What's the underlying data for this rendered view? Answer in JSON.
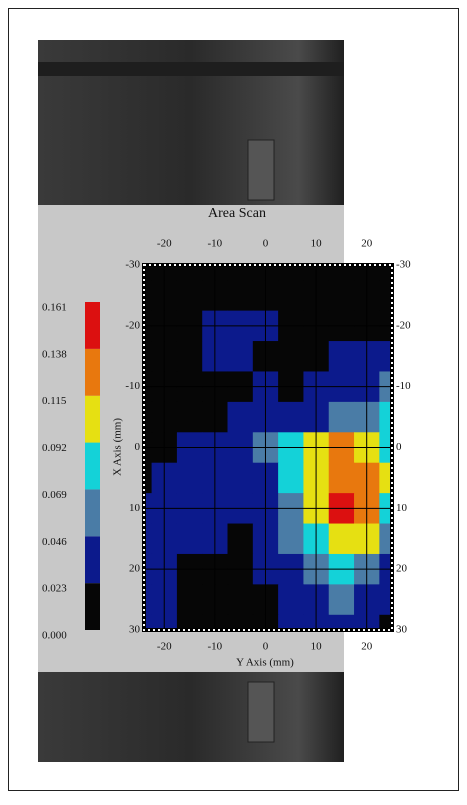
{
  "chart_data": {
    "type": "contour",
    "title": "Area Scan",
    "x_label": "Y Axis (mm)",
    "y_label": "X Axis (mm)",
    "x": [
      -25,
      -20,
      -15,
      -10,
      -5,
      0,
      5,
      10,
      15,
      20,
      25
    ],
    "y": [
      -30,
      -25,
      -20,
      -15,
      -10,
      -5,
      0,
      5,
      10,
      15,
      20,
      25,
      30
    ],
    "values": [
      [
        0.01,
        0.01,
        0.01,
        0.01,
        0.01,
        0.01,
        0.01,
        0.01,
        0.01,
        0.01,
        0.01
      ],
      [
        0.01,
        0.01,
        0.01,
        0.01,
        0.01,
        0.01,
        0.01,
        0.01,
        0.01,
        0.01,
        0.01
      ],
      [
        0.01,
        0.01,
        0.01,
        0.035,
        0.035,
        0.035,
        0.01,
        0.01,
        0.01,
        0.01,
        0.01
      ],
      [
        0.01,
        0.01,
        0.01,
        0.035,
        0.035,
        0.01,
        0.01,
        0.01,
        0.035,
        0.035,
        0.035
      ],
      [
        0.01,
        0.01,
        0.01,
        0.01,
        0.01,
        0.035,
        0.01,
        0.035,
        0.035,
        0.035,
        0.058
      ],
      [
        0.01,
        0.01,
        0.01,
        0.01,
        0.035,
        0.035,
        0.035,
        0.035,
        0.058,
        0.058,
        0.08
      ],
      [
        0.01,
        0.01,
        0.035,
        0.035,
        0.035,
        0.058,
        0.08,
        0.1,
        0.125,
        0.1,
        0.08
      ],
      [
        0.01,
        0.035,
        0.035,
        0.035,
        0.035,
        0.035,
        0.08,
        0.1,
        0.125,
        0.125,
        0.1
      ],
      [
        0.035,
        0.035,
        0.035,
        0.035,
        0.035,
        0.035,
        0.058,
        0.1,
        0.15,
        0.125,
        0.08
      ],
      [
        0.035,
        0.035,
        0.035,
        0.035,
        0.01,
        0.035,
        0.058,
        0.08,
        0.1,
        0.1,
        0.058
      ],
      [
        0.035,
        0.035,
        0.01,
        0.01,
        0.01,
        0.035,
        0.035,
        0.058,
        0.08,
        0.058,
        0.035
      ],
      [
        0.035,
        0.035,
        0.01,
        0.01,
        0.01,
        0.01,
        0.035,
        0.035,
        0.058,
        0.035,
        0.035
      ],
      [
        0.035,
        0.035,
        0.01,
        0.01,
        0.01,
        0.01,
        0.035,
        0.035,
        0.035,
        0.035,
        0.01
      ]
    ],
    "xlim": [
      -24,
      25
    ],
    "ylim": [
      -30,
      30
    ],
    "xticks": [
      -20,
      -10,
      0,
      10,
      20
    ],
    "yticks": [
      -30,
      -20,
      -10,
      0,
      10,
      20,
      30
    ],
    "grid": true,
    "colorbar": {
      "ticks": [
        {
          "value": 0,
          "label": "0.000"
        },
        0.023,
        0.046,
        0.069,
        0.092,
        0.115,
        0.138,
        0.161
      ],
      "colors": [
        "#060606",
        "#0c1a8c",
        "#4a7ca6",
        "#14d2d8",
        "#e6e012",
        "#e8780e",
        "#dc1010"
      ]
    }
  }
}
